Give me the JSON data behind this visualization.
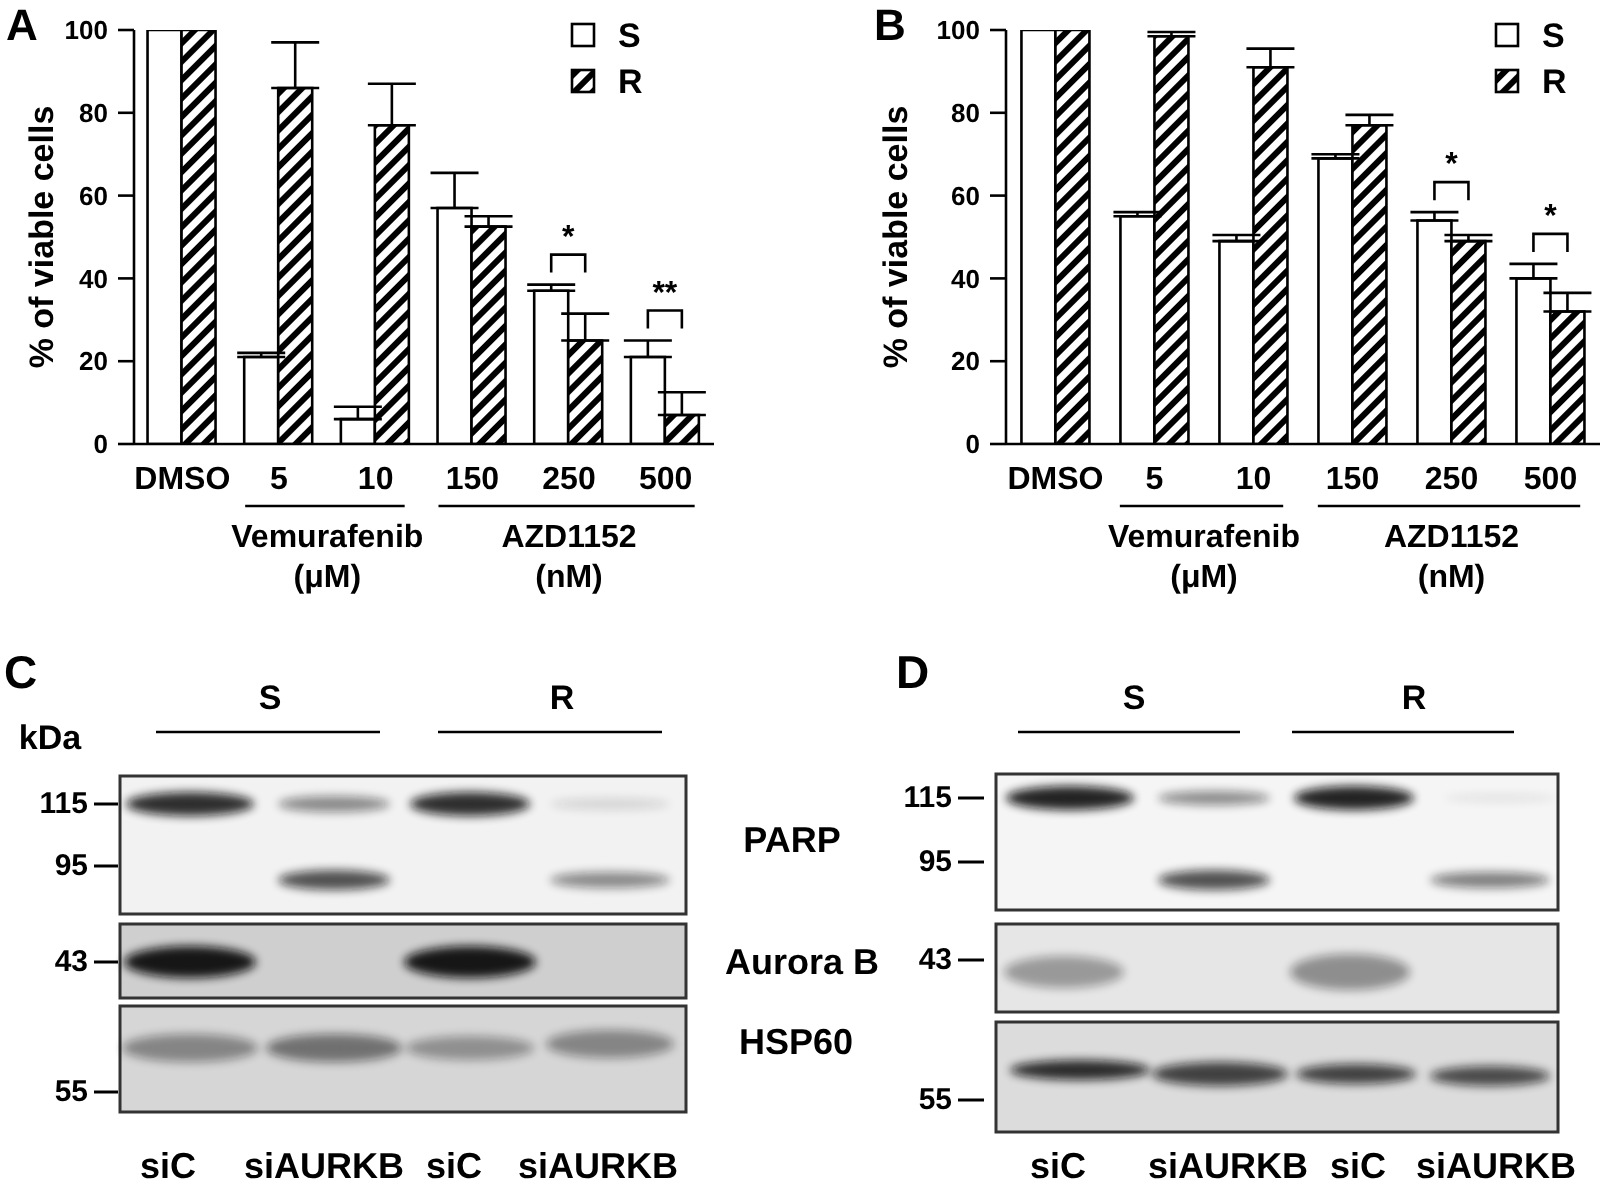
{
  "chart_data": [
    {
      "type": "bar",
      "title": "A",
      "ylabel": "% of viable cells",
      "categories": [
        "DMSO",
        "5",
        "10",
        "150",
        "250",
        "500"
      ],
      "series": [
        {
          "name": "S",
          "color": "#ffffff",
          "values": [
            100,
            21,
            6,
            57,
            37,
            21
          ],
          "errors": [
            null,
            [
              21,
              22
            ],
            [
              6,
              9
            ],
            [
              57,
              65.5
            ],
            [
              37,
              38.5
            ],
            [
              21,
              25
            ]
          ]
        },
        {
          "name": "R",
          "color": "#000000",
          "values": [
            100,
            86,
            77,
            52.5,
            25,
            7
          ],
          "errors": [
            null,
            [
              86,
              97
            ],
            [
              77,
              87
            ],
            [
              52.5,
              55
            ],
            [
              25,
              31.5
            ],
            [
              7,
              12.5
            ]
          ]
        }
      ],
      "ylim": [
        0,
        100
      ],
      "yticks": [
        0,
        20,
        40,
        60,
        80,
        100
      ],
      "legend": "top right",
      "annotations": [
        "Vemurafenib (μM)",
        "AZD1152 (nM)",
        "*",
        "**"
      ]
    },
    {
      "type": "bar",
      "title": "B",
      "ylabel": "% of viable cells",
      "categories": [
        "DMSO",
        "5",
        "10",
        "150",
        "250",
        "500"
      ],
      "series": [
        {
          "name": "S",
          "color": "#ffffff",
          "values": [
            100,
            55,
            49,
            69,
            54,
            40
          ],
          "errors": [
            null,
            [
              55,
              56
            ],
            [
              49,
              50.5
            ],
            [
              69,
              70
            ],
            [
              54,
              56
            ],
            [
              40,
              43.5
            ]
          ]
        },
        {
          "name": "R",
          "color": "#000000",
          "values": [
            100,
            98.5,
            91,
            77,
            49,
            32
          ],
          "errors": [
            null,
            [
              98.5,
              99.5
            ],
            [
              91,
              95.5
            ],
            [
              77,
              79.5
            ],
            [
              49,
              50.5
            ],
            [
              32,
              36.5
            ]
          ]
        }
      ],
      "ylim": [
        0,
        100
      ],
      "yticks": [
        0,
        20,
        40,
        60,
        80,
        100
      ],
      "legend": "top right",
      "annotations": [
        "Vemurafenib (μM)",
        "AZD1152 (nM)",
        "*",
        "*"
      ]
    },
    {
      "type": "other",
      "title": "C",
      "annotations": [
        "S",
        "R",
        "kDa",
        "115",
        "95",
        "43",
        "55",
        "PARP",
        "Aurora B",
        "HSP60",
        "siC",
        "siAURKB",
        "siC",
        "siAURKB"
      ]
    },
    {
      "type": "other",
      "title": "D",
      "annotations": [
        "S",
        "R",
        "115",
        "95",
        "43",
        "55",
        "siC",
        "siAURKB",
        "siC",
        "siAURKB"
      ]
    }
  ]
}
